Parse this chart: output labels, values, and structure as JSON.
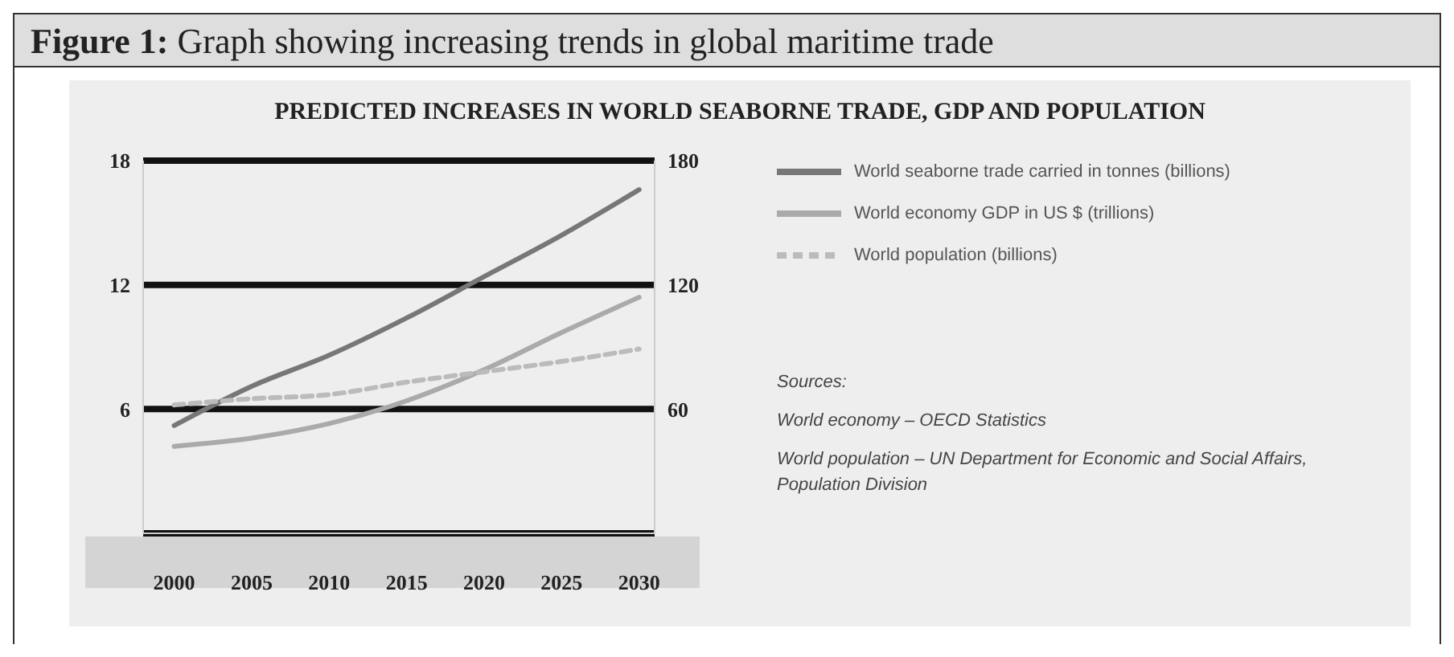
{
  "chart_data": {
    "type": "line",
    "title": "Figure 1: Graph showing increasing trends in global maritime trade",
    "subtitle": "PREDICTED INCREASES IN WORLD SEABORNE TRADE, GDP AND POPULATION",
    "x": [
      2000,
      2005,
      2010,
      2015,
      2020,
      2025,
      2030
    ],
    "xlim": [
      1998,
      2031
    ],
    "xticks": [
      2000,
      2005,
      2010,
      2015,
      2020,
      2025,
      2030
    ],
    "ylim": [
      0,
      18
    ],
    "yticks": [
      6,
      12,
      18
    ],
    "y2lim": [
      0,
      180
    ],
    "y2ticks": [
      60,
      120,
      180
    ],
    "series": [
      {
        "name": "World seaborne trade carried in tonnes (billions)",
        "color": "#777777",
        "values": [
          5.2,
          7.1,
          8.6,
          10.4,
          12.4,
          14.4,
          16.6
        ]
      },
      {
        "name": "World economy GDP in US $ (trillions)",
        "color": "#aaaaaa",
        "axis": "y2",
        "values": [
          42,
          46,
          53,
          64,
          79,
          97,
          114
        ]
      },
      {
        "name": "World population (billions)",
        "color": "#bbbbbb",
        "line_style": "dashed",
        "values": [
          6.2,
          6.5,
          6.7,
          7.3,
          7.8,
          8.3,
          8.9
        ]
      }
    ],
    "grid": "y",
    "legend": "top right",
    "marker": "none",
    "annotations": [
      "Sources:",
      "World economy – OECD Statistics",
      "World population – UN Department for Economic and Social Affairs, Population Division"
    ]
  }
}
